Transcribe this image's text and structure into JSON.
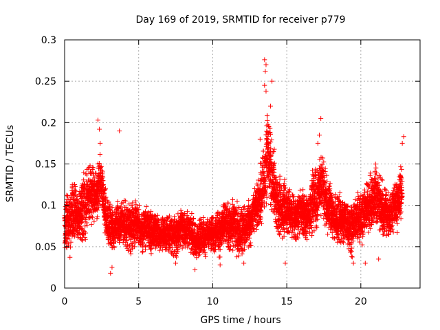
{
  "chart_data": {
    "type": "scatter",
    "title": "Day 169 of 2019, SRMTID for receiver p779",
    "xlabel": "GPS time / hours",
    "ylabel": "SRMTID / TECUs",
    "xlim": [
      0,
      24
    ],
    "ylim": [
      0,
      0.3
    ],
    "xticks": [
      "0",
      "5",
      "10",
      "15",
      "20"
    ],
    "yticks": [
      "0",
      "0.05",
      "0.1",
      "0.15",
      "0.2",
      "0.25",
      "0.3"
    ],
    "xtick_values": [
      0,
      5,
      10,
      15,
      20
    ],
    "ytick_values": [
      0,
      0.05,
      0.1,
      0.15,
      0.2,
      0.25,
      0.3
    ],
    "grid": true,
    "marker": "+",
    "marker_color": "#ff0000",
    "series_name": "SRMTID",
    "series": [
      {
        "name": "SRMTID",
        "x": [],
        "y": []
      }
    ],
    "sampling": {
      "start_hour": 0,
      "end_hour": 22.8,
      "points_per_hour": 60,
      "tracks": 6,
      "seed": 169
    },
    "envelope": [
      [
        0.0,
        0.075,
        0.04
      ],
      [
        0.5,
        0.085,
        0.04
      ],
      [
        1.0,
        0.095,
        0.04
      ],
      [
        1.5,
        0.11,
        0.04
      ],
      [
        2.0,
        0.12,
        0.04
      ],
      [
        2.4,
        0.13,
        0.04
      ],
      [
        2.8,
        0.085,
        0.03
      ],
      [
        3.2,
        0.07,
        0.03
      ],
      [
        4.0,
        0.08,
        0.03
      ],
      [
        5.0,
        0.075,
        0.03
      ],
      [
        6.0,
        0.065,
        0.025
      ],
      [
        7.0,
        0.065,
        0.025
      ],
      [
        8.0,
        0.07,
        0.025
      ],
      [
        9.0,
        0.06,
        0.025
      ],
      [
        10.0,
        0.065,
        0.025
      ],
      [
        11.0,
        0.08,
        0.03
      ],
      [
        12.0,
        0.07,
        0.03
      ],
      [
        12.8,
        0.085,
        0.03
      ],
      [
        13.3,
        0.12,
        0.04
      ],
      [
        13.7,
        0.16,
        0.05
      ],
      [
        14.0,
        0.14,
        0.05
      ],
      [
        14.4,
        0.11,
        0.04
      ],
      [
        15.0,
        0.095,
        0.03
      ],
      [
        16.0,
        0.085,
        0.03
      ],
      [
        17.0,
        0.11,
        0.04
      ],
      [
        17.4,
        0.13,
        0.04
      ],
      [
        18.0,
        0.09,
        0.03
      ],
      [
        19.0,
        0.08,
        0.03
      ],
      [
        20.0,
        0.085,
        0.03
      ],
      [
        21.0,
        0.11,
        0.04
      ],
      [
        22.0,
        0.09,
        0.03
      ],
      [
        22.8,
        0.12,
        0.04
      ]
    ],
    "outliers": [
      [
        13.5,
        0.276
      ],
      [
        13.6,
        0.27
      ],
      [
        13.55,
        0.262
      ],
      [
        13.5,
        0.245
      ],
      [
        13.6,
        0.238
      ],
      [
        14.0,
        0.25
      ],
      [
        13.9,
        0.22
      ],
      [
        13.8,
        0.195
      ],
      [
        14.1,
        0.165
      ],
      [
        2.25,
        0.203
      ],
      [
        2.35,
        0.192
      ],
      [
        2.4,
        0.175
      ],
      [
        3.7,
        0.19
      ],
      [
        17.3,
        0.205
      ],
      [
        17.2,
        0.185
      ],
      [
        17.1,
        0.175
      ],
      [
        22.9,
        0.183
      ],
      [
        22.8,
        0.175
      ],
      [
        13.2,
        0.18
      ],
      [
        3.1,
        0.018
      ],
      [
        3.2,
        0.025
      ],
      [
        10.5,
        0.028
      ],
      [
        14.9,
        0.03
      ],
      [
        7.5,
        0.03
      ],
      [
        8.8,
        0.022
      ],
      [
        12.1,
        0.03
      ],
      [
        19.5,
        0.03
      ],
      [
        20.3,
        0.03
      ],
      [
        21.2,
        0.035
      ]
    ]
  }
}
